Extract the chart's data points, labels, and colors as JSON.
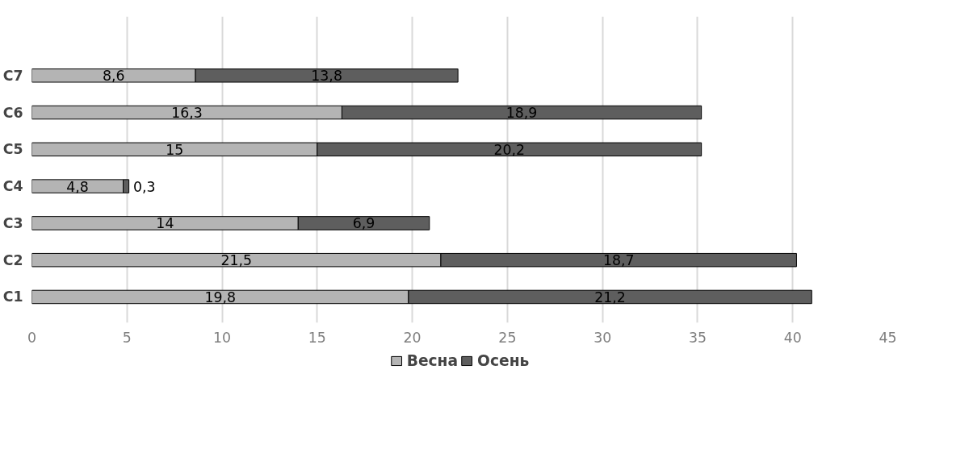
{
  "chart_data": {
    "type": "bar",
    "orientation": "horizontal",
    "stacked": true,
    "categories": [
      "C7",
      "C6",
      "C5",
      "C4",
      "C3",
      "C2",
      "C1"
    ],
    "series": [
      {
        "name": "Весна",
        "color": "#b4b4b4",
        "values": [
          8.6,
          16.3,
          15,
          4.8,
          14,
          21.5,
          19.8
        ],
        "value_labels": [
          "8,6",
          "16,3",
          "15",
          "4,8",
          "14",
          "21,5",
          "19,8"
        ]
      },
      {
        "name": "Осень",
        "color": "#5e5e5e",
        "values": [
          13.8,
          18.9,
          20.2,
          0.3,
          6.9,
          18.7,
          21.2
        ],
        "value_labels": [
          "13,8",
          "18,9",
          "20,2",
          "0,3",
          "6,9",
          "18,7",
          "21,2"
        ]
      }
    ],
    "xlim": [
      0,
      45
    ],
    "xticks": [
      0,
      5,
      10,
      15,
      20,
      25,
      30,
      35,
      40,
      45
    ],
    "grid": "x",
    "legend": "bottom"
  }
}
